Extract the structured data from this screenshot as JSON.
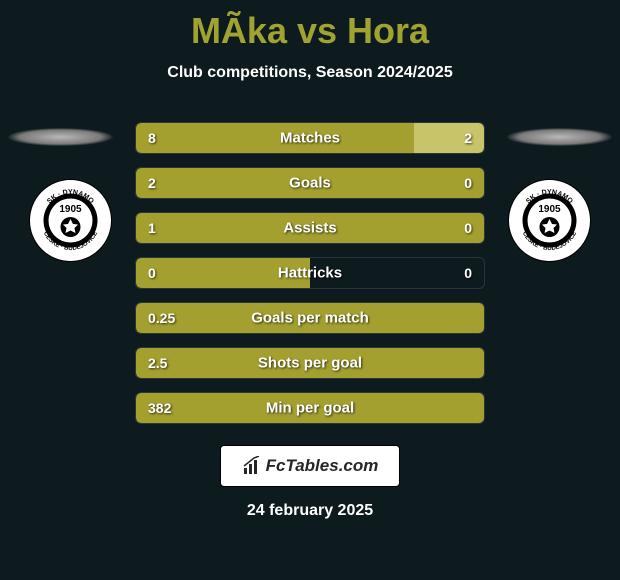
{
  "title": "MÃ­ka vs Hora",
  "subtitle": "Club competitions, Season 2024/2025",
  "date": "24 february 2025",
  "fctables_label": "FcTables.com",
  "colors": {
    "bar_player1": "#a3a030",
    "bar_player2": "#c8c469",
    "background": "#0d1b1e"
  },
  "badge": {
    "year": "1905",
    "text_top": "SK DYNAMO",
    "text_bottom": "ČESKÉ BUDĚJOVICE"
  },
  "stats": [
    {
      "label": "Matches",
      "v1": "8",
      "v2": "2",
      "w1": 80,
      "w2": 20
    },
    {
      "label": "Goals",
      "v1": "2",
      "v2": "0",
      "w1": 100,
      "w2": 0
    },
    {
      "label": "Assists",
      "v1": "1",
      "v2": "0",
      "w1": 100,
      "w2": 0
    },
    {
      "label": "Hattricks",
      "v1": "0",
      "v2": "0",
      "w1": 50,
      "w2": 0
    },
    {
      "label": "Goals per match",
      "v1": "0.25",
      "v2": "",
      "w1": 100,
      "w2": 0
    },
    {
      "label": "Shots per goal",
      "v1": "2.5",
      "v2": "",
      "w1": 100,
      "w2": 0
    },
    {
      "label": "Min per goal",
      "v1": "382",
      "v2": "",
      "w1": 100,
      "w2": 0
    }
  ]
}
